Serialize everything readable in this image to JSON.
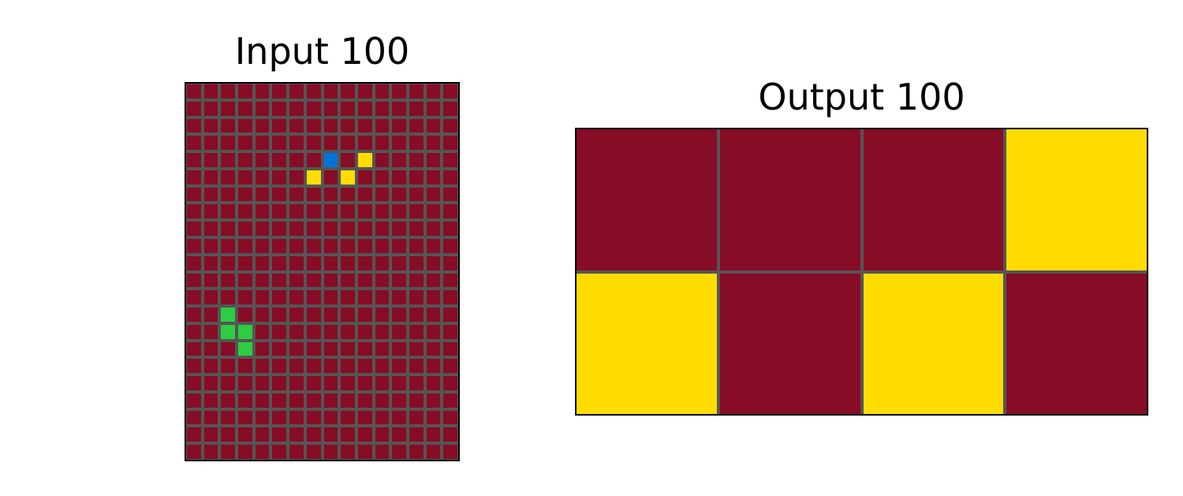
{
  "palette": {
    "0": "#870C25",
    "1": "#0074D9",
    "2": "#2ECC40",
    "3": "#FFDC00"
  },
  "grid_line_color": "#555555",
  "panels": [
    {
      "id": "input",
      "title": "Input 100",
      "rows": 22,
      "cols": 16,
      "cells": [
        "0000000000000000",
        "0000000000000000",
        "0000000000000000",
        "0000000000000000",
        "0000000010300000",
        "0000000303000000",
        "0000000000000000",
        "0000000000000000",
        "0000000000000000",
        "0000000000000000",
        "0000000000000000",
        "0000000000000000",
        "0000000000000000",
        "0020000000000000",
        "0022000000000000",
        "0002000000000000",
        "0000000000000000",
        "0000000000000000",
        "0000000000000000",
        "0000000000000000",
        "0000000000000000",
        "0000000000000000"
      ]
    },
    {
      "id": "output",
      "title": "Output 100",
      "rows": 2,
      "cols": 4,
      "cells": [
        "0003",
        "3030"
      ]
    }
  ]
}
